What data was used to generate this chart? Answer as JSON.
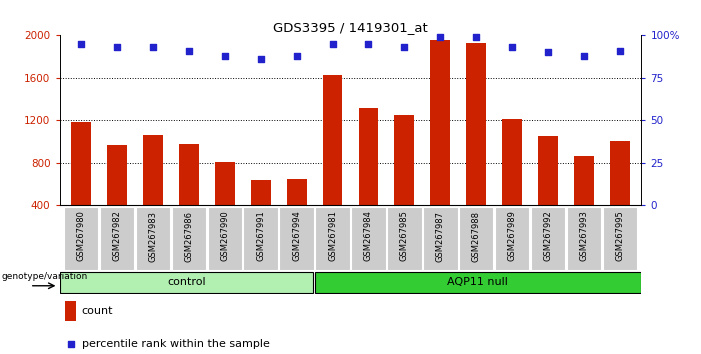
{
  "title": "GDS3395 / 1419301_at",
  "samples": [
    "GSM267980",
    "GSM267982",
    "GSM267983",
    "GSM267986",
    "GSM267990",
    "GSM267991",
    "GSM267994",
    "GSM267981",
    "GSM267984",
    "GSM267985",
    "GSM267987",
    "GSM267988",
    "GSM267989",
    "GSM267992",
    "GSM267993",
    "GSM267995"
  ],
  "counts": [
    1180,
    970,
    1060,
    980,
    810,
    640,
    650,
    1630,
    1320,
    1250,
    1960,
    1930,
    1210,
    1050,
    860,
    1010
  ],
  "percentile_ranks": [
    95,
    93,
    93,
    91,
    88,
    86,
    88,
    95,
    95,
    93,
    99,
    99,
    93,
    90,
    88,
    91
  ],
  "groups": [
    "control",
    "control",
    "control",
    "control",
    "control",
    "control",
    "control",
    "AQP11 null",
    "AQP11 null",
    "AQP11 null",
    "AQP11 null",
    "AQP11 null",
    "AQP11 null",
    "AQP11 null",
    "AQP11 null",
    "AQP11 null"
  ],
  "group_colors": {
    "control": "#b2f0b2",
    "AQP11 null": "#33cc33"
  },
  "bar_color": "#cc2200",
  "dot_color": "#2222cc",
  "ylim_left": [
    400,
    2000
  ],
  "ylim_right": [
    0,
    100
  ],
  "yticks_left": [
    400,
    800,
    1200,
    1600,
    2000
  ],
  "yticks_right": [
    0,
    25,
    50,
    75,
    100
  ],
  "ylabel_left_color": "#cc2200",
  "ylabel_right_color": "#2222cc",
  "background_color": "#ffffff",
  "tick_bg_color": "#cccccc",
  "genotype_label": "genotype/variation",
  "control_label": "control",
  "aqp11_label": "AQP11 null",
  "legend_count": "count",
  "legend_pct": "percentile rank within the sample",
  "legend_count_color": "#cc2200",
  "legend_pct_color": "#2222cc"
}
